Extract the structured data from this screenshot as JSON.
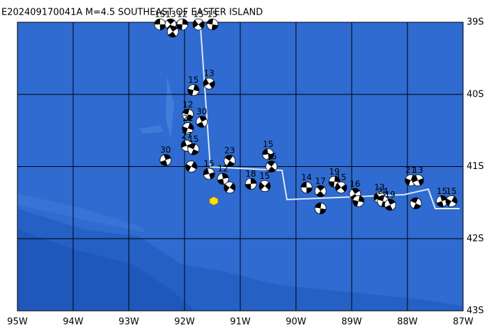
{
  "header": {
    "title": "E202409170041A M=4.5 SOUTHEAST OF EASTER ISLAND"
  },
  "map": {
    "lon_range": [
      -95,
      -87
    ],
    "lat_range": [
      -39,
      -43
    ],
    "lon_ticks": [
      {
        "value": -95,
        "label": "95W"
      },
      {
        "value": -94,
        "label": "94W"
      },
      {
        "value": -93,
        "label": "93W"
      },
      {
        "value": -92,
        "label": "92W"
      },
      {
        "value": -91,
        "label": "91W"
      },
      {
        "value": -90,
        "label": "90W"
      },
      {
        "value": -89,
        "label": "89W"
      },
      {
        "value": -88,
        "label": "88W"
      },
      {
        "value": -87,
        "label": "87W"
      }
    ],
    "lat_ticks": [
      {
        "value": -39,
        "label": "39S"
      },
      {
        "value": -40,
        "label": "40S"
      },
      {
        "value": -41,
        "label": "41S"
      },
      {
        "value": -42,
        "label": "42S"
      },
      {
        "value": -43,
        "label": "43S"
      }
    ],
    "events": [
      {
        "lon": -92.44,
        "lat": -39.03,
        "label": "15"
      },
      {
        "lon": -92.25,
        "lat": -39.03,
        "label": "13"
      },
      {
        "lon": -92.04,
        "lat": -39.03,
        "label": "12"
      },
      {
        "lon": -91.75,
        "lat": -39.03,
        "label": "15"
      },
      {
        "lon": -91.5,
        "lat": -39.03,
        "label": "15"
      },
      {
        "lon": -92.21,
        "lat": -39.13
      },
      {
        "lon": -91.84,
        "lat": -39.94,
        "label": "15"
      },
      {
        "lon": -91.56,
        "lat": -39.85,
        "label": "13"
      },
      {
        "lon": -91.94,
        "lat": -40.28,
        "label": "12"
      },
      {
        "lon": -91.69,
        "lat": -40.38,
        "label": "30"
      },
      {
        "lon": -91.94,
        "lat": -40.47,
        "label": "21"
      },
      {
        "lon": -91.96,
        "lat": -40.71,
        "label": "27"
      },
      {
        "lon": -91.84,
        "lat": -40.76,
        "label": "15"
      },
      {
        "lon": -92.34,
        "lat": -40.91,
        "label": "30"
      },
      {
        "lon": -91.88,
        "lat": -41.0
      },
      {
        "lon": -91.56,
        "lat": -41.1,
        "label": "15"
      },
      {
        "lon": -91.19,
        "lat": -40.92,
        "label": "23"
      },
      {
        "lon": -91.31,
        "lat": -41.17,
        "label": "12"
      },
      {
        "lon": -91.19,
        "lat": -41.29
      },
      {
        "lon": -90.5,
        "lat": -40.83,
        "label": "15"
      },
      {
        "lon": -90.44,
        "lat": -41.0,
        "label": "15"
      },
      {
        "lon": -90.81,
        "lat": -41.24,
        "label": "18"
      },
      {
        "lon": -90.56,
        "lat": -41.27,
        "label": "15"
      },
      {
        "lon": -89.81,
        "lat": -41.29,
        "label": "14"
      },
      {
        "lon": -89.56,
        "lat": -41.34,
        "label": "17"
      },
      {
        "lon": -89.31,
        "lat": -41.21,
        "label": "19"
      },
      {
        "lon": -89.19,
        "lat": -41.29,
        "label": "15"
      },
      {
        "lon": -89.56,
        "lat": -41.58
      },
      {
        "lon": -88.94,
        "lat": -41.38,
        "label": "16"
      },
      {
        "lon": -88.88,
        "lat": -41.48
      },
      {
        "lon": -88.5,
        "lat": -41.43,
        "label": "13"
      },
      {
        "lon": -88.44,
        "lat": -41.48,
        "label": "24"
      },
      {
        "lon": -88.31,
        "lat": -41.53,
        "label": "19"
      },
      {
        "lon": -87.94,
        "lat": -41.19,
        "label": "21"
      },
      {
        "lon": -87.81,
        "lat": -41.19,
        "label": "13"
      },
      {
        "lon": -87.85,
        "lat": -41.51
      },
      {
        "lon": -87.38,
        "lat": -41.48,
        "label": "15"
      },
      {
        "lon": -87.21,
        "lat": -41.48,
        "label": "15"
      }
    ]
  }
}
